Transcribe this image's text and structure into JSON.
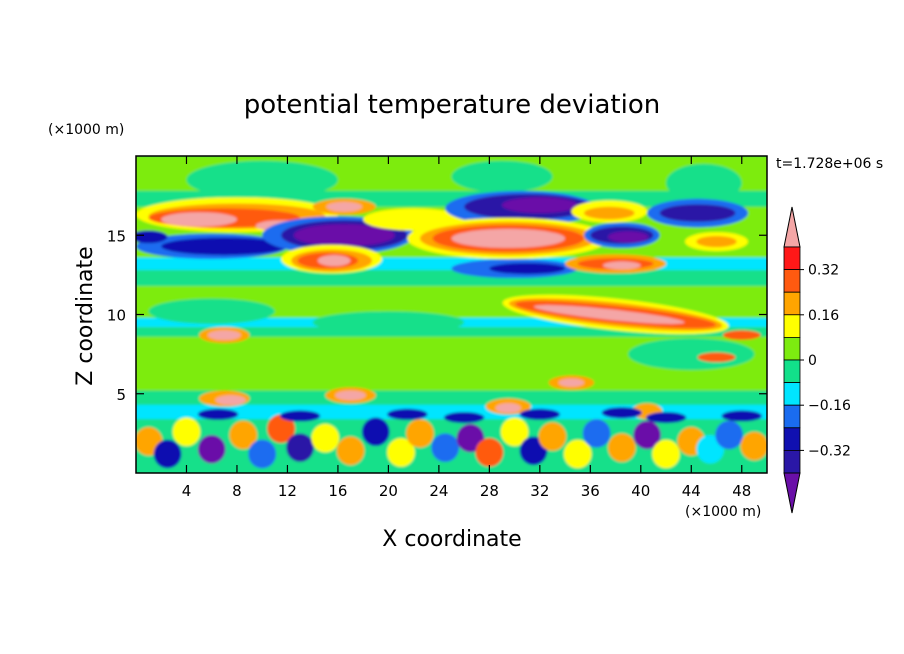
{
  "chart_data": {
    "type": "heatmap",
    "title": "potential temperature deviation",
    "xlabel": "X coordinate",
    "ylabel": "Z coordinate",
    "x_unit": "(×1000 m)",
    "y_unit": "(×1000 m)",
    "time_label": "t=1.728e+06 s",
    "xlim": [
      0,
      50
    ],
    "ylim": [
      0,
      20
    ],
    "x_ticks": [
      "4",
      "8",
      "12",
      "16",
      "20",
      "24",
      "28",
      "32",
      "36",
      "40",
      "44",
      "48"
    ],
    "y_ticks": [
      "5",
      "10",
      "15"
    ],
    "colorbar": {
      "levels": [
        -0.4,
        -0.32,
        -0.24,
        -0.16,
        -0.08,
        0,
        0.08,
        0.16,
        0.24,
        0.32,
        0.4
      ],
      "labels": [
        "0.32",
        "0.16",
        "0",
        "−0.16",
        "−0.32"
      ],
      "colors": [
        "#6a0fa8",
        "#2a17a6",
        "#1010b0",
        "#1a6cf0",
        "#00e5ff",
        "#12e08a",
        "#7dec10",
        "#ffff00",
        "#ffa500",
        "#ff5a10",
        "#ff1818",
        "#f4a6a6"
      ]
    },
    "features": [
      {
        "x": [
          0,
          50
        ],
        "z": [
          0,
          3.5
        ],
        "note": "turbulent boundary layer with alternating ±0.3 cells"
      },
      {
        "x": [
          2,
          20
        ],
        "z": [
          13.5,
          17.5
        ],
        "note": "positive band above negative band"
      },
      {
        "x": [
          25,
          40
        ],
        "z": [
          13.5,
          17.5
        ],
        "note": "positive core near x=29, z=14.8 with negative cap"
      },
      {
        "x": [
          30,
          48
        ],
        "z": [
          8.5,
          11
        ],
        "note": "tilted positive streak"
      }
    ]
  }
}
